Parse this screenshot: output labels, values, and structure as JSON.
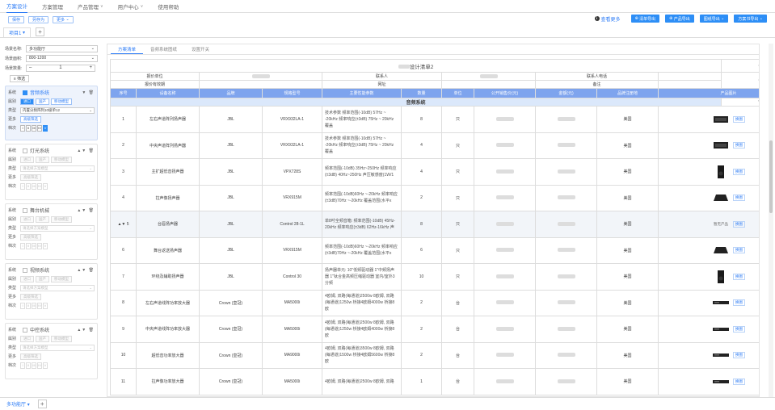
{
  "nav": [
    "方案设计",
    "方案管理",
    "产品管理",
    "用户中心",
    "使用帮助"
  ],
  "toolbar": {
    "save": "保存",
    "save_as": "另存为",
    "more": "更多",
    "help": "查看更多",
    "buttons": [
      "清单导出",
      "产品导出",
      "图纸导出",
      "方案书导出"
    ]
  },
  "project_tab": "项目1",
  "sidebar": {
    "venue_label": "场景名称:",
    "venue_value": "多功能厅",
    "area_label": "场景面积:",
    "area_value": "800-1200",
    "count_label": "场景数量:",
    "count_value": "1",
    "filter": "筛选",
    "sys_label": "系统",
    "type_label": "属别",
    "model_label": "类型",
    "more_label": "更多",
    "grade_label": "档次",
    "imp": "进口",
    "dom": "国产",
    "fav": "移动模型",
    "more_btn": "高级筛选",
    "placeholder": "请选择方案模型",
    "grades": [
      "I",
      "II",
      "III",
      "IV",
      "V"
    ],
    "systems": [
      {
        "name": "音频系统",
        "model": "内置分频阵列10级单12",
        "active": true
      },
      {
        "name": "灯光系统",
        "active": false
      },
      {
        "name": "舞台机械",
        "active": false
      },
      {
        "name": "视频系统",
        "active": false
      },
      {
        "name": "中控系统",
        "active": false
      }
    ]
  },
  "bottom_tab": "多功能厅",
  "tabs": [
    "方案清单",
    "音频系统图纸",
    "设置开关"
  ],
  "doc_title": "设计清单2",
  "info": {
    "quote_unit": "报价单位",
    "contact": "联系人",
    "contact_phone": "联系人电话",
    "valid": "报价有效期",
    "website": "网址",
    "remark": "备注"
  },
  "columns": [
    "序号",
    "设备名称",
    "品牌",
    "规格型号",
    "主要性能参数",
    "数量",
    "单位",
    "公开销售价(元)",
    "金额(元)",
    "品牌注册地",
    "产品图片"
  ],
  "section": "音频系统",
  "swap": "换图",
  "rows": [
    {
      "no": "1",
      "name": "左右声道阵列扬声器",
      "brand": "JBL",
      "model": "VRX932LA-1",
      "params": "技术参数 频率范围(-10dB) 57Hz ~ -20kHz 频率响应(±3dB) 75Hz ~ 20kHz 覆盖",
      "qty": "8",
      "unit": "只",
      "origin": "美国",
      "img": "speaker"
    },
    {
      "no": "2",
      "name": "中央声道阵列扬声器",
      "brand": "JBL",
      "model": "VRX932LA-1",
      "params": "技术参数 频率范围(-10dB) 57Hz ~ -20kHz 频率响应(±3dB) 75Hz ~ 20kHz 覆盖",
      "qty": "4",
      "unit": "只",
      "origin": "美国",
      "img": "speaker"
    },
    {
      "no": "3",
      "name": "主扩超低音扬声器",
      "brand": "JBL",
      "model": "VPX728S",
      "params": "频率范围(-10dB) 35Hz~250Hz 频率响应(±3dB) 40Hz~250Hz 声压敏感度(1W/1",
      "qty": "4",
      "unit": "只",
      "origin": "美国",
      "img": "sub"
    },
    {
      "no": "4",
      "name": "拉声像扬声器",
      "brand": "JBL",
      "model": "VRX915M",
      "params": "频率范围(-10dB)60Hz ~-20kHz 频率响应(±3dB)70Hz ~-20kHz 覆盖范围(水平x",
      "qty": "2",
      "unit": "只",
      "origin": "美国",
      "img": "monitor"
    },
    {
      "no": "5",
      "name": "台唇扬声器",
      "brand": "JBL",
      "model": "Control 28-1L",
      "params": "单8吋全频音箱: 频率范围(-10dB) 45Hz-20kHz 频率响应(±3dB) 62Hz-16kHz 声",
      "qty": "8",
      "unit": "只",
      "origin": "美国",
      "img": "none",
      "noimg": "暂无产品"
    },
    {
      "no": "6",
      "name": "舞台返送扬声器",
      "brand": "JBL",
      "model": "VRX915M",
      "params": "频率范围(-10dB)60Hz ~-20kHz 频率响应(±3dB)70Hz ~-20kHz 覆盖范围(水平x",
      "qty": "6",
      "unit": "只",
      "origin": "美国",
      "img": "monitor"
    },
    {
      "no": "7",
      "name": "环绕及辅助扬声器",
      "brand": "JBL",
      "model": "Control 30",
      "params": "扬声器单元: 10\"低频驱动器 1\"中频扬声器 1\"钛合金高频压缩驱动器 室内/室外3分频",
      "qty": "10",
      "unit": "只",
      "origin": "美国",
      "img": "sub"
    },
    {
      "no": "8",
      "name": "左右声道线阵功率放大器",
      "brand": "Crown (皇冠)",
      "model": "MA5000i",
      "params": "4欧姆, 双路(每通道)2500w 8欧姆, 双路(每通道)1250w 桥接4欧姆4000w 桥接8欧",
      "qty": "2",
      "unit": "台",
      "origin": "美国",
      "img": "amp"
    },
    {
      "no": "9",
      "name": "中央声道线阵功率放大器",
      "brand": "Crown (皇冠)",
      "model": "MA5000i",
      "params": "4欧姆, 双路(每通道)2500w 8欧姆, 双路(每通道)1250w 桥接4欧姆4000w 桥接8欧",
      "qty": "2",
      "unit": "台",
      "origin": "美国",
      "img": "amp"
    },
    {
      "no": "10",
      "name": "超低音功率放大器",
      "brand": "Crown (皇冠)",
      "model": "MA9000i",
      "params": "4欧姆, 双路(每通道)3500w 8欧姆, 双路(每通道)1500w 桥接4欧姆5600w 桥接8欧",
      "qty": "2",
      "unit": "台",
      "origin": "美国",
      "img": "amp"
    },
    {
      "no": "11",
      "name": "拉声像功率放大器",
      "brand": "Crown (皇冠)",
      "model": "MA5000i",
      "params": "4欧姆, 双路(每通道)2500w 8欧姆, 双路",
      "qty": "1",
      "unit": "台",
      "origin": "美国",
      "img": "amp"
    }
  ]
}
